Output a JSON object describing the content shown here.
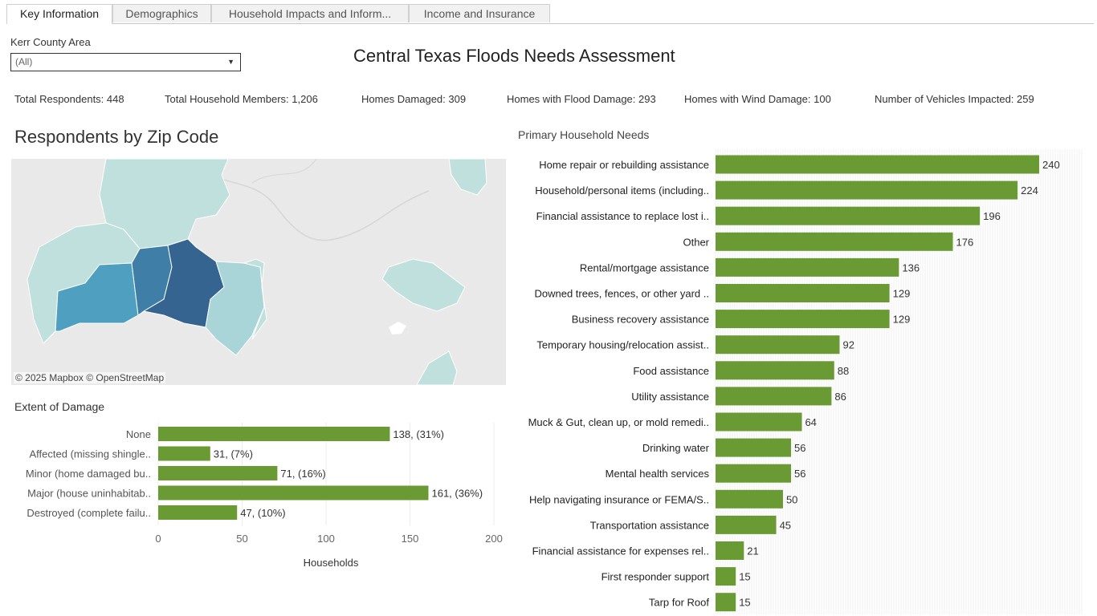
{
  "tabs": [
    {
      "label": "Key Information",
      "active": true
    },
    {
      "label": "Demographics",
      "active": false
    },
    {
      "label": "Household Impacts and Inform...",
      "active": false
    },
    {
      "label": "Income and Insurance",
      "active": false
    }
  ],
  "filter": {
    "label": "Kerr County Area",
    "value": "(All)"
  },
  "title": "Central Texas Floods Needs Assessment",
  "kpis": [
    {
      "label": "Total Respondents:",
      "value": "448"
    },
    {
      "label": "Total Household Members:",
      "value": "1,206"
    },
    {
      "label": "Homes Damaged:",
      "value": "309"
    },
    {
      "label": "Homes with Flood Damage:",
      "value": "293"
    },
    {
      "label": "Homes with Wind Damage:",
      "value": "100"
    },
    {
      "label": "Number of Vehicles Impacted:",
      "value": "259"
    }
  ],
  "map": {
    "title": "Respondents by Zip Code",
    "attribution": "© 2025 Mapbox  © OpenStreetMap",
    "colors": {
      "light": "#bfe0dc",
      "mid": "#7dbfcf",
      "medium": "#4f9fc0",
      "dark_mid": "#3f7ea7",
      "dark": "#34648f",
      "pale": "#a9d5d8"
    }
  },
  "chart_data": [
    {
      "type": "bar",
      "orientation": "horizontal",
      "title": "Extent of Damage",
      "categories": [
        "None",
        "Affected (missing shingle..",
        "Minor (home damaged bu..",
        "Major (house uninhabitab..",
        "Destroyed (complete failu.."
      ],
      "values": [
        138,
        31,
        71,
        161,
        47
      ],
      "data_labels": [
        "138, (31%)",
        "31, (7%)",
        "71, (16%)",
        "161, (36%)",
        "47, (10%)"
      ],
      "xlabel": "Households",
      "xlim": [
        0,
        200
      ],
      "xticks": [
        0,
        50,
        100,
        150,
        200
      ],
      "color": "#6a9a34"
    },
    {
      "type": "bar",
      "orientation": "horizontal",
      "title": "Primary Household Needs",
      "categories": [
        "Home repair or rebuilding assistance",
        "Household/personal items (including..",
        "Financial assistance to replace lost i..",
        "Other",
        "Rental/mortgage assistance",
        "Downed trees, fences, or other yard ..",
        "Business recovery assistance",
        "Temporary housing/relocation assist..",
        "Food assistance",
        "Utility assistance",
        "Muck & Gut, clean up, or mold remedi..",
        "Drinking water",
        "Mental health services",
        "Help navigating insurance or FEMA/S..",
        "Transportation assistance",
        "Financial assistance for expenses rel..",
        "First responder support",
        "Tarp for Roof"
      ],
      "values": [
        240,
        224,
        196,
        176,
        136,
        129,
        129,
        92,
        88,
        86,
        64,
        56,
        56,
        50,
        45,
        21,
        15,
        15
      ],
      "color": "#6a9a34"
    }
  ]
}
